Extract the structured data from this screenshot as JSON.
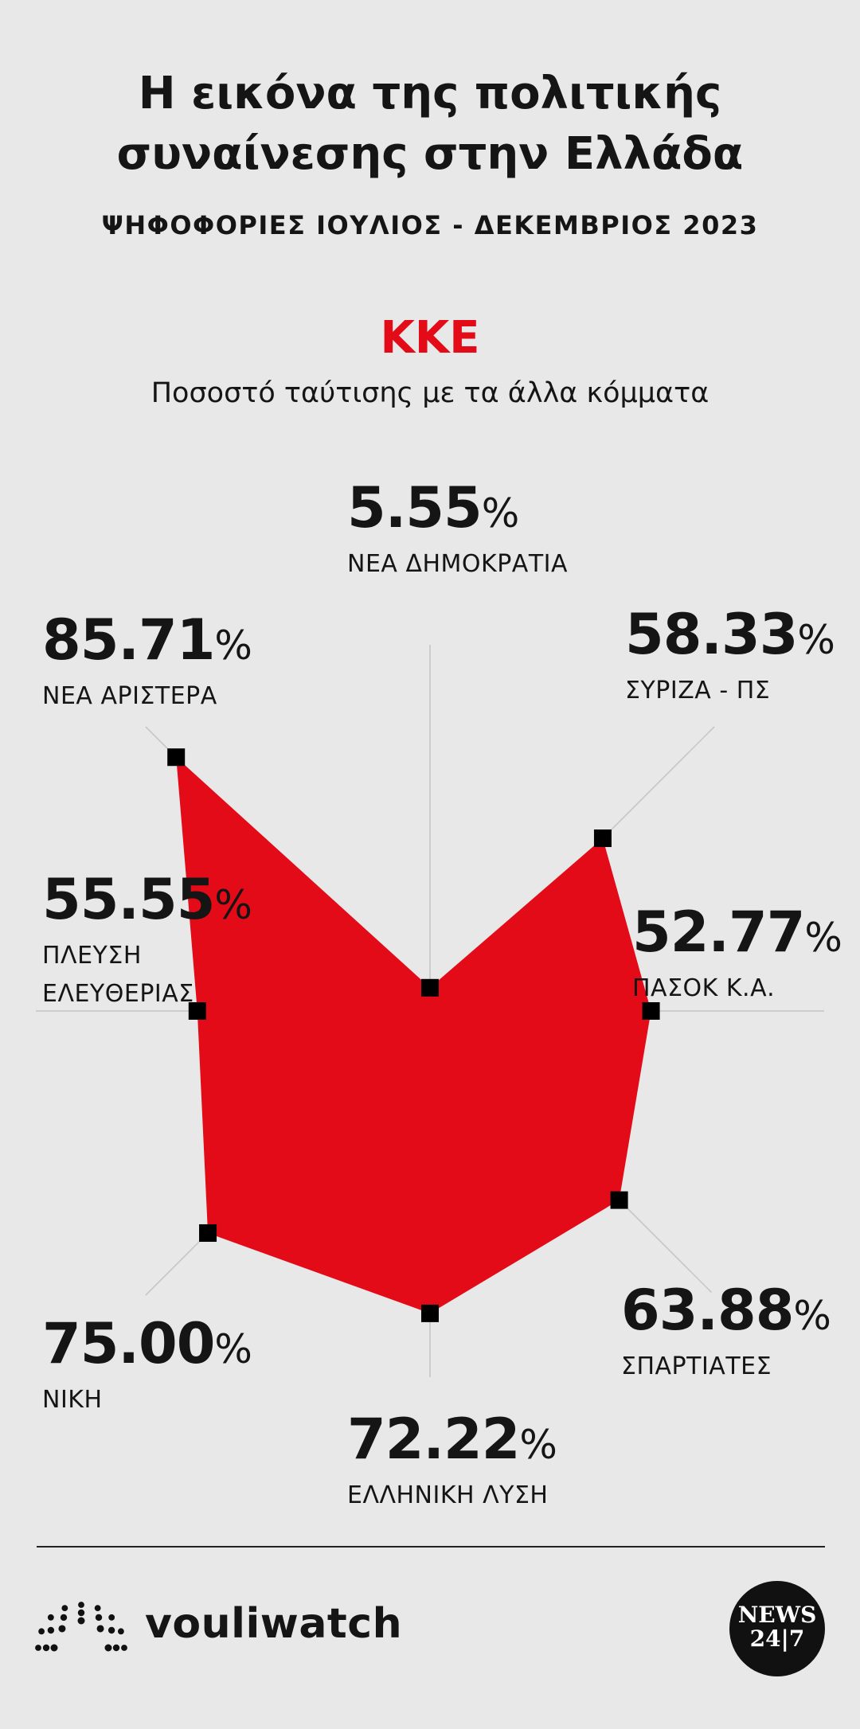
{
  "chart_data": {
    "type": "radar",
    "title": "Η εικόνα της πολιτικής συναίνεσης στην Ελλάδα",
    "subtitle": "ΨΗΦΟΦΟΡΙΕΣ ΙΟΥΛΙΟΣ - ΔΕΚΕΜΒΡΙΟΣ 2023",
    "y_label": "Ποσοστό ταύτισης με τα άλλα κόμματα",
    "categories": [
      "ΝΕΑ ΔΗΜΟΚΡΑΤΙΑ",
      "ΣΥΡΙΖΑ - ΠΣ",
      "ΠΑΣΟΚ Κ.Α.",
      "ΣΠΑΡΤΙΑΤΕΣ",
      "ΕΛΛΗΝΙΚΗ ΛΥΣΗ",
      "ΝΙΚΗ",
      "ΠΛΕΥΣΗ ΕΛΕΥΘΕΡΙΑΣ",
      "ΝΕΑ ΑΡΙΣΤΕΡΑ"
    ],
    "series": [
      {
        "name": "ΚΚΕ",
        "color": "#e30b17",
        "values": [
          5.55,
          58.33,
          52.77,
          63.88,
          72.22,
          75,
          55.55,
          85.71
        ],
        "value_labels": [
          "5.55%",
          "58.33%",
          "52.77%",
          "63.88%",
          "72.22%",
          "75.00%",
          "55.55%",
          "85.71%"
        ]
      }
    ],
    "rlim": [
      0,
      100
    ],
    "marker_color": "#000000"
  },
  "footer": {
    "brand": "vouliwatch",
    "logo": [
      "NEWS",
      "24|7"
    ]
  }
}
